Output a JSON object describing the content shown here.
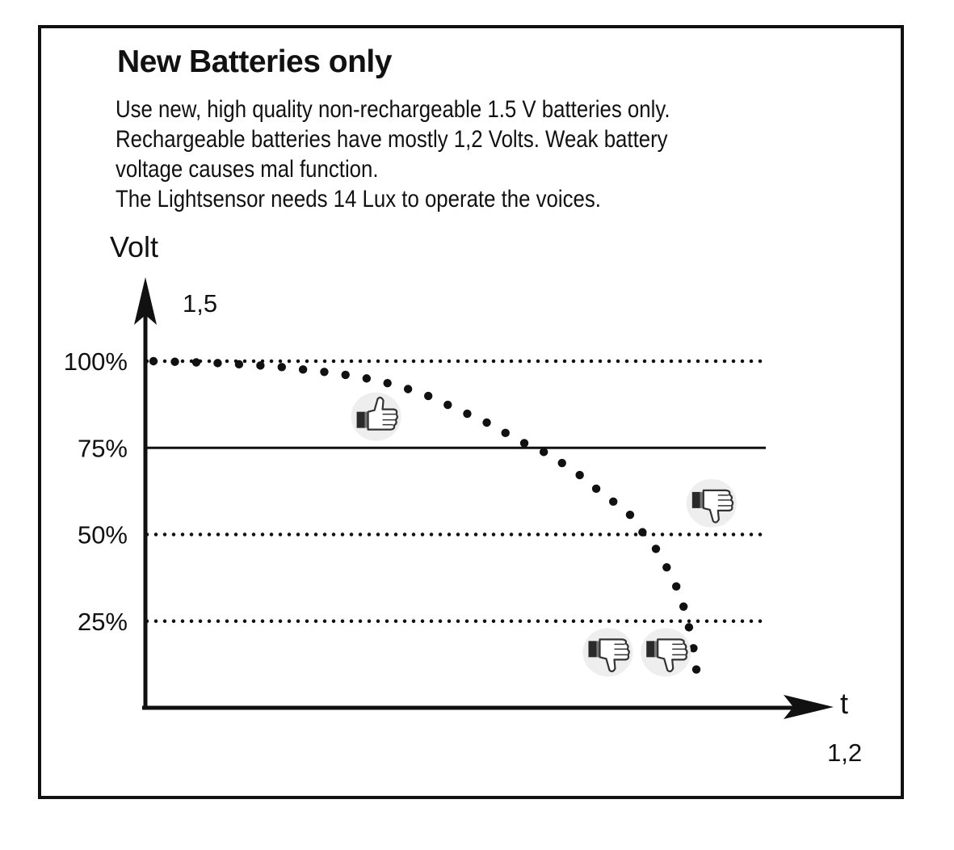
{
  "title": "New Batteries only",
  "description": [
    "Use new, high quality non-rechargeable 1.5 V batteries only.",
    "Rechargeable batteries have mostly 1,2 Volts. Weak battery",
    "voltage causes mal function.",
    "The Lightsensor needs 14 Lux to operate the voices."
  ],
  "chart_data": {
    "type": "line",
    "ylabel": "Volt",
    "xlabel": "t",
    "y_top_label": "1,5",
    "x_end_label": "1,2",
    "y_ticks": [
      {
        "label": "100%",
        "value": 100
      },
      {
        "label": "75%",
        "value": 75
      },
      {
        "label": "50%",
        "value": 50
      },
      {
        "label": "25%",
        "value": 25
      }
    ],
    "ylim": [
      0,
      100
    ],
    "threshold_value": 75,
    "series": [
      {
        "style": "dotted",
        "color": "#111111",
        "x": [
          0,
          10,
          20,
          30,
          35,
          40,
          45,
          50,
          55,
          60,
          65,
          70,
          72,
          75,
          78,
          80,
          82,
          84,
          85.5,
          86.7,
          87.5,
          88.3,
          88.8,
          89.2
        ],
        "values": [
          100,
          99.5,
          98.5,
          96.5,
          95,
          93,
          90,
          86,
          82,
          77,
          73,
          67,
          64,
          60,
          56,
          51,
          47,
          41,
          36,
          30.5,
          25.5,
          19.5,
          14.5,
          8
        ]
      }
    ],
    "xlim": [
      0,
      100
    ]
  },
  "icons": [
    {
      "name": "thumbs-up-icon",
      "x": 36.5,
      "y": 84
    },
    {
      "name": "thumbs-down-icon",
      "x": 91.5,
      "y": 59
    },
    {
      "name": "thumbs-down-icon",
      "x": 74.5,
      "y": 16
    },
    {
      "name": "thumbs-down-icon",
      "x": 84,
      "y": 16
    }
  ]
}
